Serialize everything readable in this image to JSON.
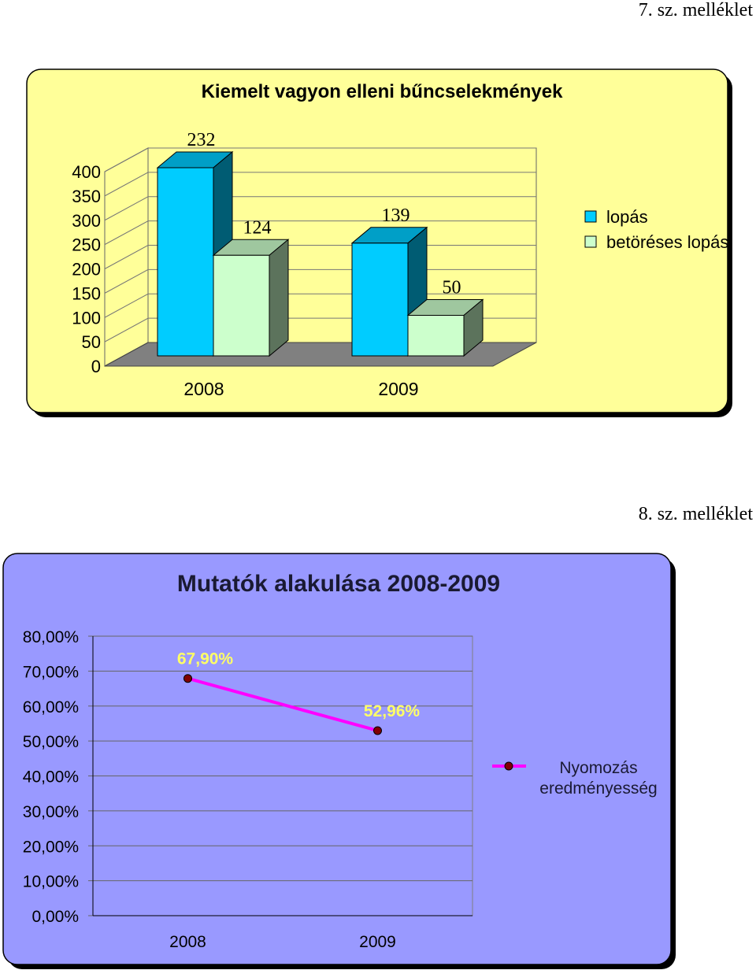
{
  "annex_labels": [
    "7. sz. melléklet",
    "8. sz. melléklet"
  ],
  "chart_data": [
    {
      "type": "bar",
      "title": "Kiemelt vagyon elleni bűncselekmények",
      "categories": [
        "2008",
        "2009"
      ],
      "series": [
        {
          "name": "lopás",
          "values": [
            232,
            139
          ],
          "color": "#00ccff"
        },
        {
          "name": "betöréses lopás",
          "values": [
            124,
            50
          ],
          "color": "#ccffcc"
        }
      ],
      "data_labels": [
        [
          "232",
          "139"
        ],
        [
          "124",
          "50"
        ]
      ],
      "ylim": [
        0,
        400
      ],
      "yticks": [
        "0",
        "50",
        "100",
        "150",
        "200",
        "250",
        "300",
        "350",
        "400"
      ],
      "legend_position": "right",
      "background": "#ffff99",
      "grid": true,
      "style": "3d"
    },
    {
      "type": "line",
      "title": "Mutatók alakulása 2008-2009",
      "categories": [
        "2008",
        "2009"
      ],
      "series": [
        {
          "name": "Nyomozás eredményesség",
          "values": [
            67.9,
            52.96
          ],
          "color": "#ff00ff",
          "marker_color": "#800000"
        }
      ],
      "data_labels": [
        "67,90%",
        "52,96%"
      ],
      "ylim": [
        0,
        80
      ],
      "yticks": [
        "0,00%",
        "10,00%",
        "20,00%",
        "30,00%",
        "40,00%",
        "50,00%",
        "60,00%",
        "70,00%",
        "80,00%"
      ],
      "legend_position": "right",
      "background": "#9999ff",
      "grid": true
    }
  ]
}
